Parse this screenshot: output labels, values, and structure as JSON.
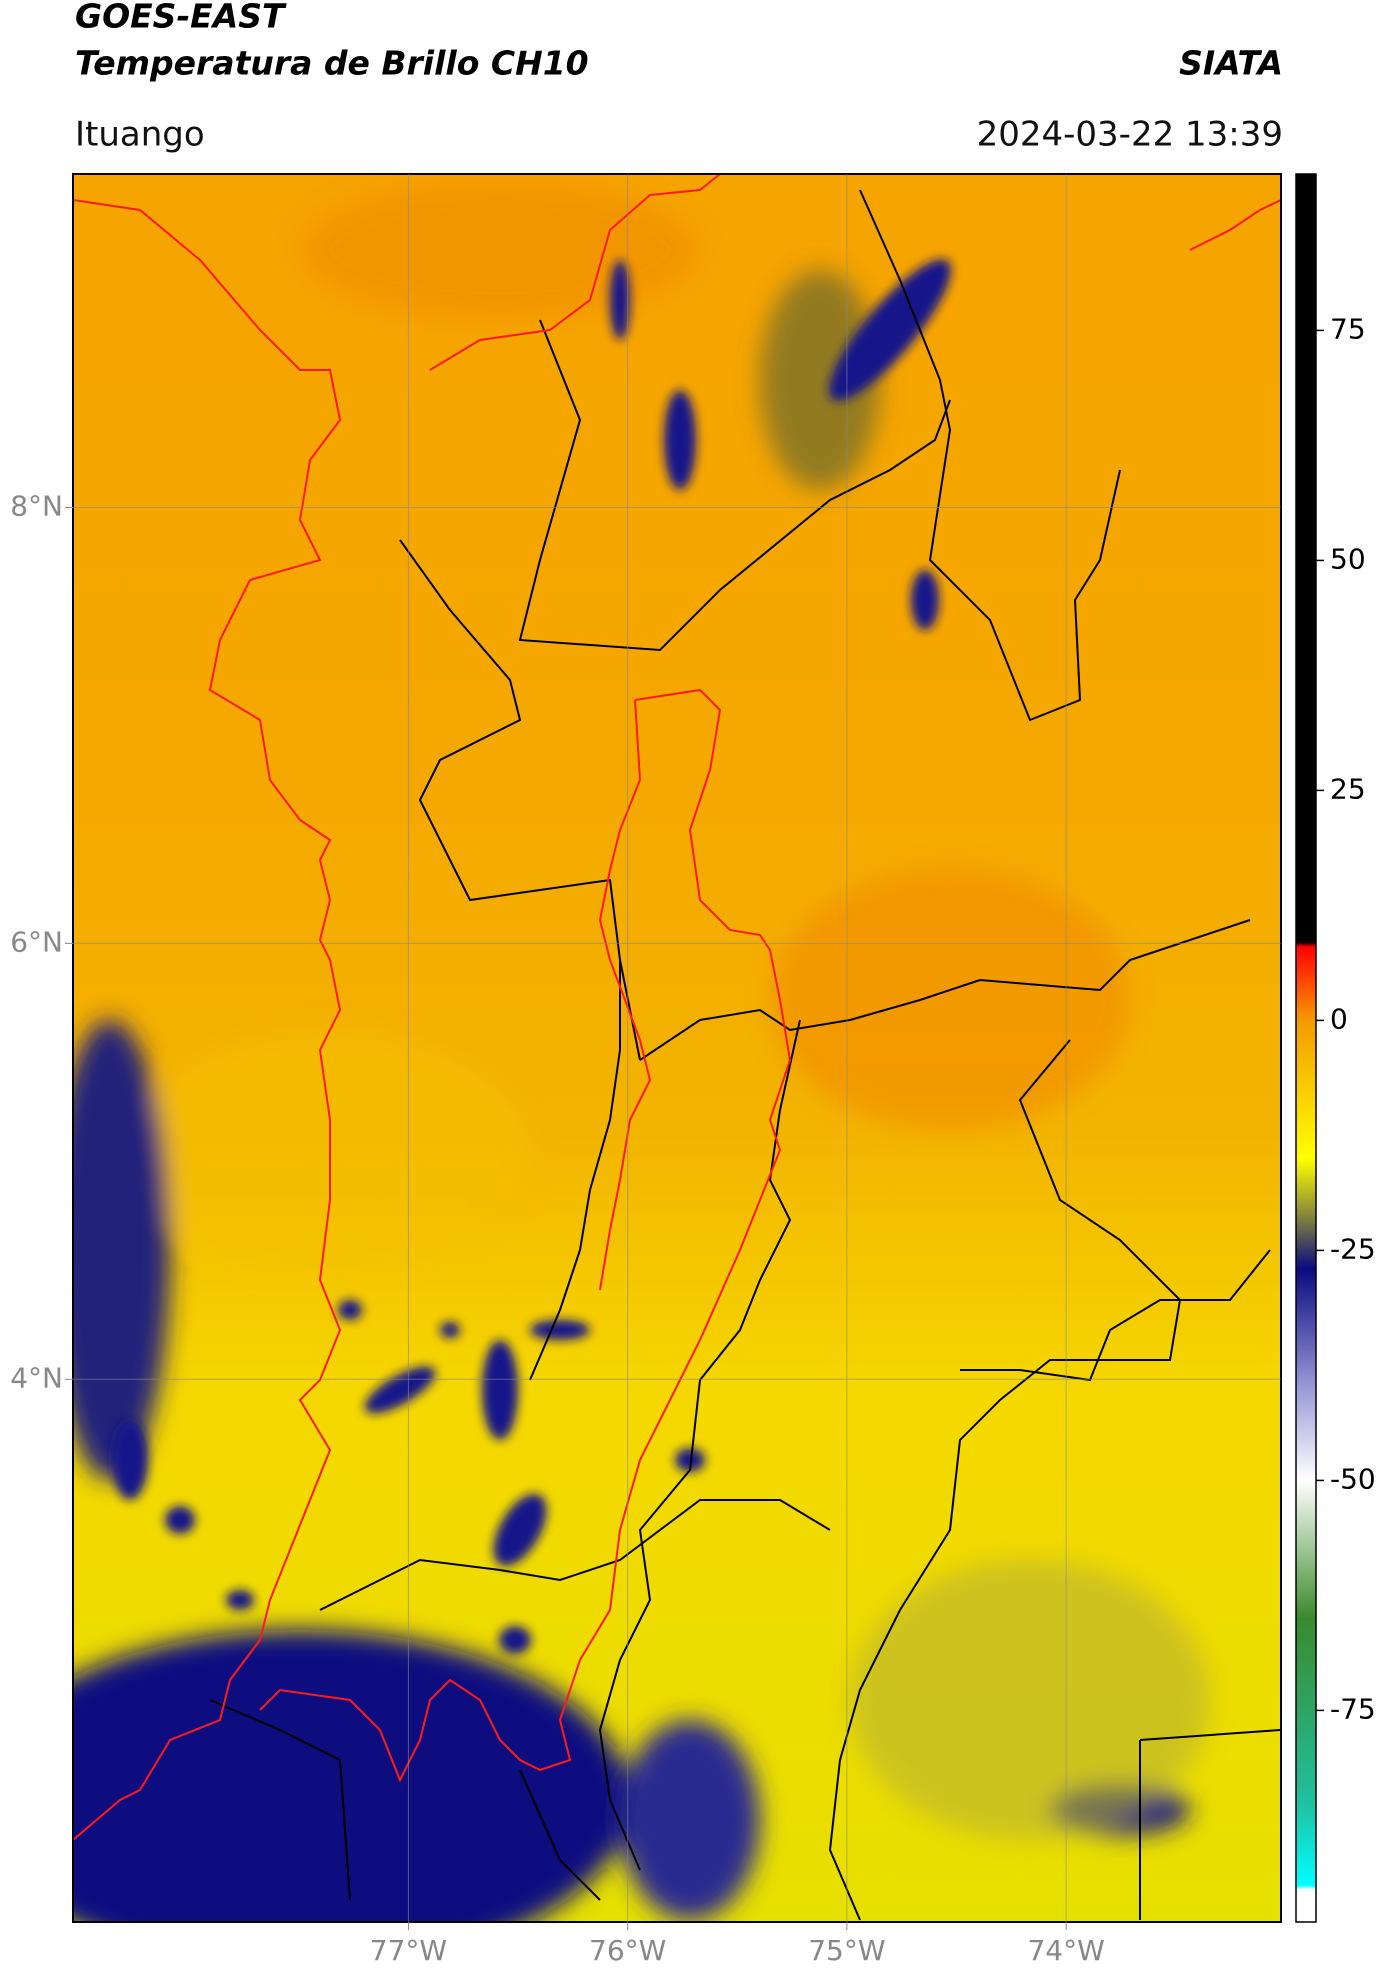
{
  "header": {
    "title": "GOES-EAST",
    "subtitle": "Temperatura de Brillo CH10",
    "brand": "SIATA",
    "location": "Ituango",
    "timestamp": "2024-03-22 13:39"
  },
  "map": {
    "lonlim": [
      -78.53,
      -73.02
    ],
    "latlim": [
      1.51,
      9.53
    ],
    "lonticks": [
      {
        "value": -77,
        "label": "77°W"
      },
      {
        "value": -76,
        "label": "76°W"
      },
      {
        "value": -75,
        "label": "75°W"
      },
      {
        "value": -74,
        "label": "74°W"
      }
    ],
    "latticks": [
      {
        "value": 8,
        "label": "8°N"
      },
      {
        "value": 6,
        "label": "6°N"
      },
      {
        "value": 4,
        "label": "4°N"
      }
    ]
  },
  "colorbar": {
    "lim": [
      -98,
      92
    ],
    "ticks": [
      75,
      50,
      25,
      0,
      -25,
      -50,
      -75
    ],
    "colormap": [
      {
        "value": 92,
        "color": "#000000"
      },
      {
        "value": 8.5,
        "color": "#000000"
      },
      {
        "value": 8,
        "color": "#ff0000"
      },
      {
        "value": 0,
        "color": "#f59a00"
      },
      {
        "value": -15,
        "color": "#ffff00"
      },
      {
        "value": -21,
        "color": "#8a8a3a"
      },
      {
        "value": -27,
        "color": "#0a0a80"
      },
      {
        "value": -40,
        "color": "#9a9ad8"
      },
      {
        "value": -50,
        "color": "#ffffff"
      },
      {
        "value": -65,
        "color": "#3a8a2a"
      },
      {
        "value": -85,
        "color": "#20c0a0"
      },
      {
        "value": -94,
        "color": "#00ffff"
      },
      {
        "value": -94.5,
        "color": "#ffffff"
      },
      {
        "value": -98,
        "color": "#ffffff"
      }
    ]
  }
}
